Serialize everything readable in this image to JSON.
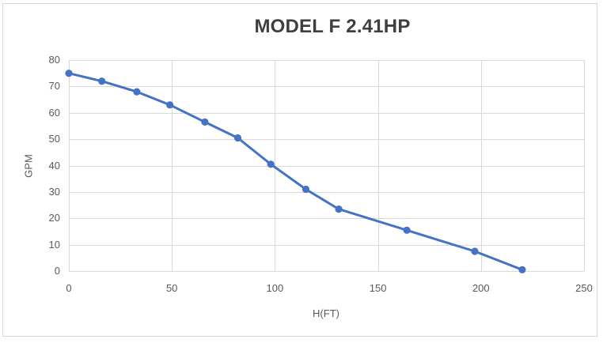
{
  "page": {
    "frame_border_color": "#d6d6d6",
    "background_color": "#ffffff"
  },
  "chart_data": {
    "type": "line",
    "title": "MODEL F 2.41HP",
    "xlabel": "H(FT)",
    "ylabel": "GPM",
    "x": [
      0,
      16,
      33,
      49,
      66,
      82,
      98,
      115,
      131,
      164,
      197,
      220
    ],
    "y": [
      75,
      72,
      68,
      63,
      56.5,
      50.5,
      40.5,
      31,
      23.5,
      15.5,
      7.5,
      0.5
    ],
    "xlim": [
      0,
      250
    ],
    "ylim": [
      0,
      80
    ],
    "x_ticks": [
      0,
      50,
      100,
      150,
      200,
      250
    ],
    "y_ticks": [
      0,
      10,
      20,
      30,
      40,
      50,
      60,
      70,
      80
    ],
    "grid": true,
    "legend": false,
    "line_color": "#4472C4",
    "marker": "circle",
    "gridline_color": "#D9D9D9",
    "tick_label_color": "#595959",
    "title_color": "#3F3F3F",
    "axis_title_color": "#595959"
  }
}
